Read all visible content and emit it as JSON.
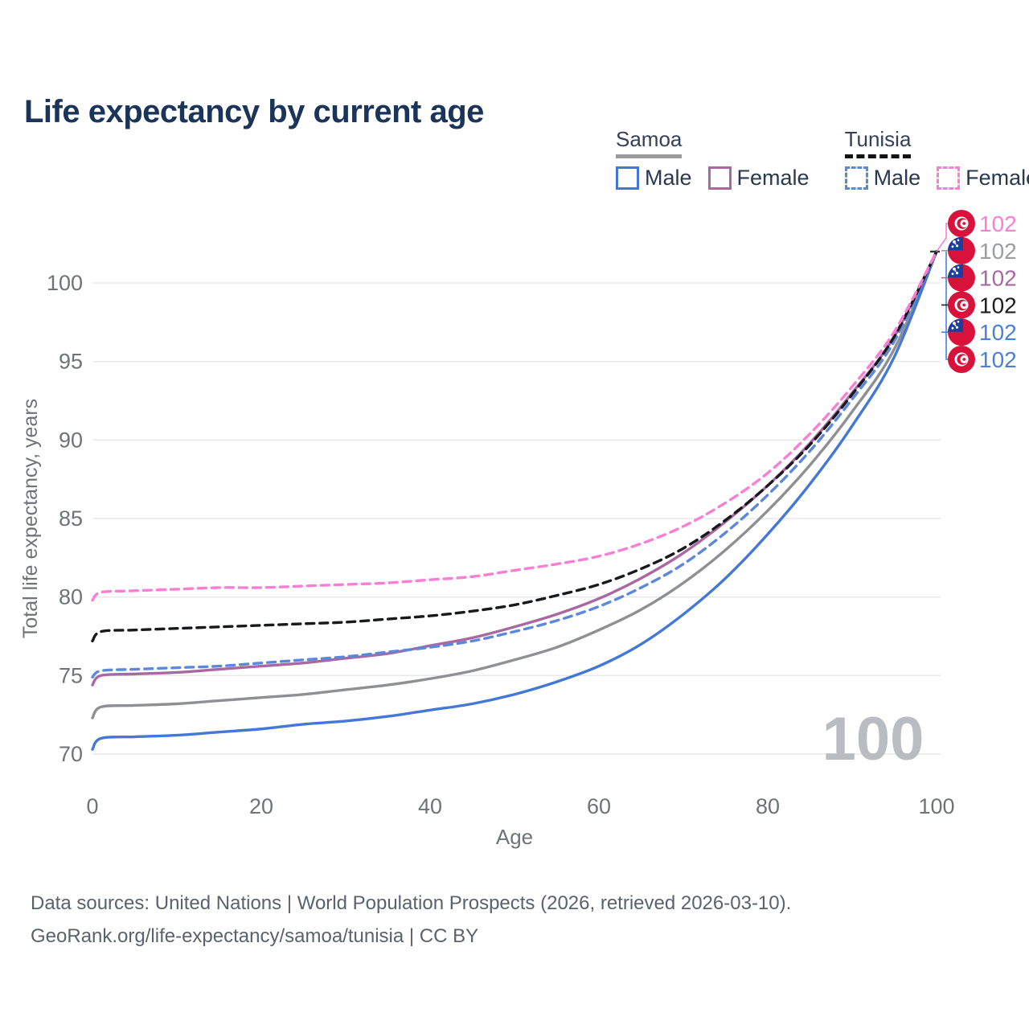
{
  "title": "Life expectancy by current age",
  "legend": {
    "samoa": {
      "label": "Samoa",
      "male_label": "Male",
      "female_label": "Female"
    },
    "tunisia": {
      "label": "Tunisia",
      "male_label": "Male",
      "female_label": "Female"
    }
  },
  "watermark": "100",
  "footer": {
    "line1": "Data sources: United Nations | World Population Prospects (2026, retrieved 2026-03-10).",
    "line2": "GeoRank.org/life-expectancy/samoa/tunisia | CC BY"
  },
  "colors": {
    "title": "#1b3459",
    "axis_text": "#6f7378",
    "grid": "#e6e8eb",
    "footer_text": "#5a626b",
    "watermark": "#b9bdc2",
    "samoa_underline": "#9b9b9b",
    "tunisia_underline": "#141414",
    "flag_red": "#d8123a",
    "flag_blue": "#1f3d9c"
  },
  "chart_data": {
    "type": "line",
    "title": "Life expectancy by current age",
    "xlabel": "Age",
    "ylabel": "Total life expectancy, years",
    "xlim": [
      0,
      100
    ],
    "ylim": [
      69,
      103
    ],
    "xticks": [
      0,
      20,
      40,
      60,
      80,
      100
    ],
    "yticks": [
      70,
      75,
      80,
      85,
      90,
      95,
      100
    ],
    "grid": "horizontal",
    "legend_position": "top-right",
    "ages": [
      0,
      1,
      5,
      10,
      15,
      20,
      25,
      30,
      35,
      40,
      45,
      50,
      55,
      60,
      65,
      70,
      75,
      80,
      85,
      90,
      95,
      100
    ],
    "series": [
      {
        "id": "samoa-both",
        "country": "Samoa",
        "sex": "both",
        "style": "solid",
        "color": "#8f9093",
        "values": [
          72.3,
          73.0,
          73.1,
          73.2,
          73.4,
          73.6,
          73.8,
          74.1,
          74.4,
          74.8,
          75.3,
          76.0,
          76.8,
          77.9,
          79.2,
          80.9,
          83.0,
          85.5,
          88.4,
          91.8,
          95.8,
          102
        ]
      },
      {
        "id": "samoa-male",
        "country": "Samoa",
        "sex": "male",
        "style": "solid",
        "color": "#4478d8",
        "values": [
          70.3,
          71.0,
          71.1,
          71.2,
          71.4,
          71.6,
          71.9,
          72.1,
          72.4,
          72.8,
          73.2,
          73.8,
          74.6,
          75.6,
          77.0,
          78.9,
          81.2,
          84.0,
          87.2,
          90.9,
          95.3,
          102
        ]
      },
      {
        "id": "samoa-female",
        "country": "Samoa",
        "sex": "female",
        "style": "solid",
        "color": "#aa68a2",
        "values": [
          74.4,
          75.0,
          75.1,
          75.2,
          75.4,
          75.6,
          75.8,
          76.1,
          76.4,
          76.9,
          77.4,
          78.1,
          78.9,
          79.9,
          81.2,
          82.8,
          84.8,
          87.1,
          89.8,
          93.0,
          96.6,
          102
        ]
      },
      {
        "id": "tunisia-male",
        "country": "Tunisia",
        "sex": "male",
        "style": "dashed",
        "color": "#5c88dc",
        "values": [
          74.9,
          75.3,
          75.4,
          75.5,
          75.6,
          75.8,
          76.0,
          76.2,
          76.5,
          76.8,
          77.2,
          77.8,
          78.5,
          79.4,
          80.6,
          82.1,
          84.1,
          86.5,
          89.3,
          92.6,
          96.3,
          102
        ]
      },
      {
        "id": "tunisia-both",
        "country": "Tunisia",
        "sex": "both",
        "style": "dashed",
        "color": "#17191b",
        "values": [
          77.2,
          77.8,
          77.9,
          78.0,
          78.1,
          78.2,
          78.3,
          78.4,
          78.6,
          78.8,
          79.1,
          79.5,
          80.1,
          80.8,
          81.8,
          83.1,
          84.9,
          87.1,
          89.7,
          92.9,
          96.6,
          102
        ]
      },
      {
        "id": "tunisia-female",
        "country": "Tunisia",
        "sex": "female",
        "style": "dashed",
        "color": "#f97fd5",
        "values": [
          79.8,
          80.3,
          80.4,
          80.5,
          80.6,
          80.6,
          80.7,
          80.8,
          80.9,
          81.1,
          81.3,
          81.7,
          82.1,
          82.6,
          83.4,
          84.5,
          86.0,
          87.9,
          90.4,
          93.4,
          96.9,
          102
        ]
      }
    ],
    "end_labels": [
      {
        "series": "tunisia-female",
        "flag": "tunisia",
        "text": "102",
        "color": "#f97fd5"
      },
      {
        "series": "samoa-both",
        "flag": "samoa",
        "text": "102",
        "color": "#9b9da0"
      },
      {
        "series": "samoa-female",
        "flag": "samoa",
        "text": "102",
        "color": "#aa68a2"
      },
      {
        "series": "tunisia-both",
        "flag": "tunisia",
        "text": "102",
        "color": "#1c1e20"
      },
      {
        "series": "samoa-male",
        "flag": "samoa",
        "text": "102",
        "color": "#4a80dc"
      },
      {
        "series": "tunisia-male",
        "flag": "tunisia",
        "text": "102",
        "color": "#4a80dc"
      }
    ]
  }
}
